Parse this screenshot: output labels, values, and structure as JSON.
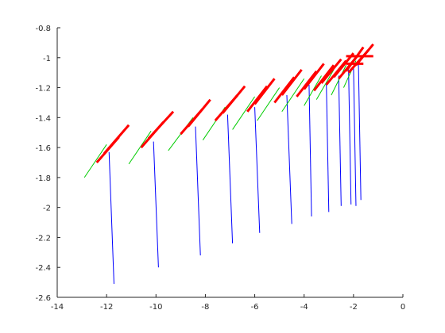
{
  "chart_data": {
    "type": "line",
    "title": "",
    "xlabel": "",
    "ylabel": "",
    "xlim": [
      -14,
      0
    ],
    "ylim": [
      -2.6,
      -0.8
    ],
    "grid": false,
    "x_ticks": [
      -14,
      -12,
      -10,
      -8,
      -6,
      -4,
      -2,
      0
    ],
    "y_ticks": [
      -2.6,
      -2.4,
      -2.2,
      -2.0,
      -1.8,
      -1.6,
      -1.4,
      -1.2,
      -1.0,
      -0.8
    ],
    "x_tick_labels": [
      "-14",
      "-12",
      "-10",
      "-8",
      "-6",
      "-4",
      "-2",
      "0"
    ],
    "y_tick_labels": [
      "-2.6",
      "-2.4",
      "-2.2",
      "-2",
      "-1.8",
      "-1.6",
      "-1.4",
      "-1.2",
      "-1",
      "-0.8"
    ],
    "colors": {
      "blue": "#0000ff",
      "green": "#00cc00",
      "red": "#ff0000"
    },
    "blue_segments": [
      [
        [
          -11.9,
          -1.63
        ],
        [
          -11.7,
          -2.51
        ]
      ],
      [
        [
          -10.1,
          -1.56
        ],
        [
          -9.9,
          -2.4
        ]
      ],
      [
        [
          -8.4,
          -1.46
        ],
        [
          -8.2,
          -2.32
        ]
      ],
      [
        [
          -7.1,
          -1.38
        ],
        [
          -6.9,
          -2.24
        ]
      ],
      [
        [
          -6.0,
          -1.33
        ],
        [
          -5.8,
          -2.17
        ]
      ],
      [
        [
          -4.7,
          -1.25
        ],
        [
          -4.5,
          -2.11
        ]
      ],
      [
        [
          -3.8,
          -1.18
        ],
        [
          -3.7,
          -2.06
        ]
      ],
      [
        [
          -3.1,
          -1.17
        ],
        [
          -3.0,
          -2.03
        ]
      ],
      [
        [
          -2.6,
          -1.12
        ],
        [
          -2.5,
          -1.99
        ]
      ],
      [
        [
          -2.2,
          -1.08
        ],
        [
          -2.1,
          -1.98
        ]
      ],
      [
        [
          -2.0,
          -1.06
        ],
        [
          -1.9,
          -1.99
        ]
      ],
      [
        [
          -1.8,
          -1.04
        ],
        [
          -1.7,
          -1.95
        ]
      ]
    ],
    "green_segments": [
      [
        [
          -12.9,
          -1.8
        ],
        [
          -12.0,
          -1.58
        ]
      ],
      [
        [
          -11.1,
          -1.71
        ],
        [
          -10.2,
          -1.49
        ]
      ],
      [
        [
          -9.5,
          -1.62
        ],
        [
          -8.5,
          -1.4
        ]
      ],
      [
        [
          -8.1,
          -1.55
        ],
        [
          -7.2,
          -1.33
        ]
      ],
      [
        [
          -6.9,
          -1.48
        ],
        [
          -6.0,
          -1.26
        ]
      ],
      [
        [
          -5.9,
          -1.42
        ],
        [
          -5.0,
          -1.2
        ]
      ],
      [
        [
          -4.9,
          -1.36
        ],
        [
          -4.0,
          -1.14
        ]
      ],
      [
        [
          -4.0,
          -1.32
        ],
        [
          -3.3,
          -1.12
        ]
      ],
      [
        [
          -3.5,
          -1.28
        ],
        [
          -2.8,
          -1.08
        ]
      ],
      [
        [
          -2.9,
          -1.25
        ],
        [
          -2.3,
          -1.05
        ]
      ],
      [
        [
          -2.4,
          -1.2
        ],
        [
          -1.9,
          -1.02
        ]
      ]
    ],
    "red_pairs": [
      [
        [
          -12.4,
          -1.7
        ],
        [
          -11.5,
          -1.53
        ]
      ],
      [
        [
          -12.1,
          -1.64
        ],
        [
          -11.1,
          -1.45
        ]
      ],
      [
        [
          -10.6,
          -1.6
        ],
        [
          -9.7,
          -1.43
        ]
      ],
      [
        [
          -10.3,
          -1.54
        ],
        [
          -9.3,
          -1.36
        ]
      ],
      [
        [
          -9.0,
          -1.51
        ],
        [
          -8.1,
          -1.34
        ]
      ],
      [
        [
          -8.7,
          -1.46
        ],
        [
          -7.8,
          -1.28
        ]
      ],
      [
        [
          -7.6,
          -1.42
        ],
        [
          -6.7,
          -1.25
        ]
      ],
      [
        [
          -7.3,
          -1.37
        ],
        [
          -6.4,
          -1.19
        ]
      ],
      [
        [
          -6.3,
          -1.36
        ],
        [
          -5.5,
          -1.19
        ]
      ],
      [
        [
          -6.0,
          -1.31
        ],
        [
          -5.2,
          -1.14
        ]
      ],
      [
        [
          -5.2,
          -1.3
        ],
        [
          -4.4,
          -1.13
        ]
      ],
      [
        [
          -4.9,
          -1.25
        ],
        [
          -4.1,
          -1.08
        ]
      ],
      [
        [
          -4.3,
          -1.26
        ],
        [
          -3.5,
          -1.09
        ]
      ],
      [
        [
          -4.0,
          -1.21
        ],
        [
          -3.2,
          -1.04
        ]
      ],
      [
        [
          -3.6,
          -1.22
        ],
        [
          -2.8,
          -1.05
        ]
      ],
      [
        [
          -3.3,
          -1.17
        ],
        [
          -2.5,
          -1.01
        ]
      ],
      [
        [
          -3.1,
          -1.18
        ],
        [
          -2.3,
          -1.02
        ]
      ],
      [
        [
          -2.8,
          -1.13
        ],
        [
          -2.0,
          -0.97
        ]
      ],
      [
        [
          -2.6,
          -1.14
        ],
        [
          -1.8,
          -0.98
        ]
      ],
      [
        [
          -2.3,
          -1.09
        ],
        [
          -1.6,
          -0.93
        ]
      ],
      [
        [
          -2.2,
          -1.1
        ],
        [
          -1.4,
          -0.95
        ]
      ],
      [
        [
          -1.9,
          -1.05
        ],
        [
          -1.2,
          -0.91
        ]
      ],
      [
        [
          -2.3,
          -0.99
        ],
        [
          -1.2,
          -0.99
        ]
      ],
      [
        [
          -2.3,
          -1.04
        ],
        [
          -1.6,
          -1.04
        ]
      ]
    ]
  }
}
